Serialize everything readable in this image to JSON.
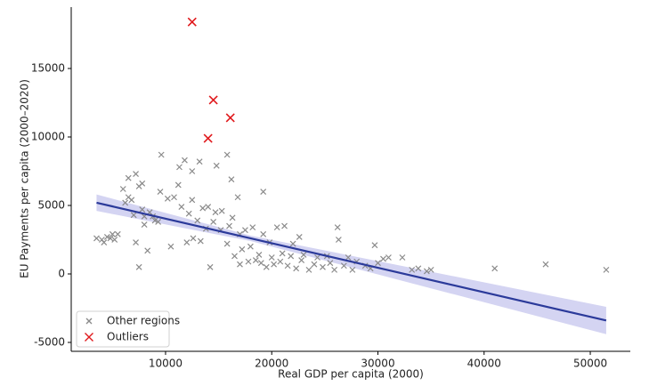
{
  "chart_data": {
    "type": "scatter",
    "x_label": "Real GDP per capita (2000)",
    "y_label": "EU Payments per capita (2000–2020)",
    "xlim": [
      1115,
      53770
    ],
    "ylim": [
      -5650,
      19480
    ],
    "xticks": [
      10000,
      20000,
      30000,
      40000,
      50000
    ],
    "yticks": [
      -5000,
      0,
      5000,
      10000,
      15000
    ],
    "legend": "lower left",
    "series": [
      {
        "name": "Other regions",
        "color": "#8a8a8a",
        "x": [
          3500,
          4000,
          4200,
          4500,
          4800,
          5000,
          5200,
          5500,
          6000,
          6200,
          6500,
          6500,
          6800,
          7000,
          7200,
          7200,
          7500,
          7500,
          7800,
          7800,
          8000,
          8000,
          8300,
          8500,
          8800,
          9000,
          9300,
          9500,
          9600,
          10200,
          10500,
          10800,
          11200,
          11300,
          11500,
          11800,
          12000,
          12200,
          12500,
          12500,
          12600,
          13000,
          13200,
          13300,
          13500,
          13800,
          14000,
          14200,
          14500,
          14700,
          14800,
          15200,
          15300,
          15800,
          15800,
          16000,
          16200,
          16300,
          16500,
          16800,
          17000,
          17000,
          17200,
          17500,
          17800,
          18000,
          18200,
          18500,
          18800,
          19000,
          19200,
          19200,
          19500,
          19800,
          20000,
          20200,
          20500,
          20800,
          21000,
          21200,
          21500,
          21800,
          22000,
          22300,
          22600,
          22800,
          23000,
          23500,
          24000,
          24300,
          24800,
          25200,
          25500,
          25900,
          26200,
          26300,
          26800,
          27200,
          27600,
          28000,
          28800,
          29300,
          29700,
          30000,
          30500,
          31000,
          32300,
          33200,
          33800,
          34600,
          35000,
          41000,
          45800,
          51500
        ],
        "values": [
          2600,
          2500,
          2300,
          2700,
          2600,
          2900,
          2500,
          2900,
          6200,
          5200,
          5600,
          7000,
          5400,
          4300,
          7300,
          2300,
          6400,
          500,
          6600,
          4700,
          4200,
          3600,
          1700,
          4500,
          4200,
          3900,
          3800,
          6000,
          8700,
          5500,
          2000,
          5600,
          6500,
          7800,
          4900,
          8300,
          2300,
          4400,
          7500,
          5400,
          2600,
          3900,
          8200,
          2400,
          4800,
          3300,
          4900,
          500,
          3800,
          4500,
          7900,
          3200,
          4600,
          2200,
          8700,
          3500,
          6900,
          4100,
          1300,
          5600,
          2900,
          700,
          1800,
          3200,
          900,
          2000,
          3400,
          1000,
          1400,
          800,
          6000,
          2900,
          500,
          2300,
          1200,
          700,
          3400,
          900,
          1500,
          3500,
          600,
          1300,
          2200,
          400,
          2700,
          1000,
          1400,
          300,
          700,
          1200,
          500,
          1300,
          800,
          300,
          3400,
          2500,
          600,
          1200,
          300,
          900,
          600,
          400,
          2100,
          800,
          1100,
          1200,
          1200,
          300,
          400,
          200,
          300,
          400,
          700,
          300
        ]
      },
      {
        "name": "Outliers",
        "color": "#e0191c",
        "x": [
          12500,
          14500,
          16100,
          14000
        ],
        "values": [
          18400,
          12700,
          11400,
          9900
        ]
      }
    ],
    "fit": {
      "color": "#2b3a9a",
      "band_color": "#c9c9ef",
      "x": [
        3500,
        18000,
        51500
      ],
      "y": [
        5200,
        2600,
        -3400
      ],
      "lower": [
        4600,
        2400,
        -4400
      ],
      "upper": [
        5800,
        2800,
        -2400
      ]
    }
  }
}
